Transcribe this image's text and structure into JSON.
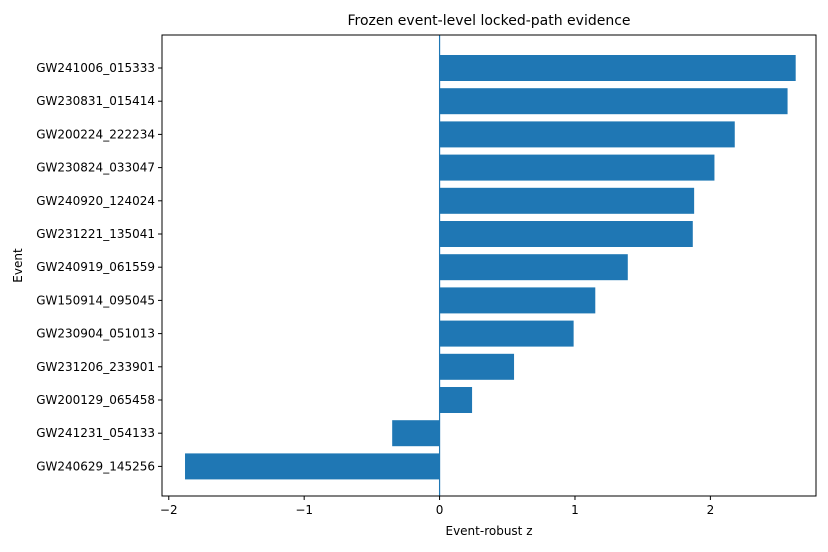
{
  "chart_data": {
    "type": "bar",
    "orientation": "horizontal",
    "title": "Frozen event-level locked-path evidence",
    "xlabel": "Event-robust z",
    "ylabel": "Event",
    "categories": [
      "GW241006_015333",
      "GW230831_015414",
      "GW200224_222234",
      "GW230824_033047",
      "GW240920_124024",
      "GW231221_135041",
      "GW240919_061559",
      "GW150914_095045",
      "GW230904_051013",
      "GW231206_233901",
      "GW200129_065458",
      "GW241231_054133",
      "GW240629_145256"
    ],
    "values": [
      2.63,
      2.57,
      2.18,
      2.03,
      1.88,
      1.87,
      1.39,
      1.15,
      0.99,
      0.55,
      0.24,
      -0.35,
      -1.88
    ],
    "xlim": [
      -2.05,
      2.78
    ],
    "xticks": [
      -2,
      -1,
      0,
      1,
      2
    ],
    "xtick_labels": [
      "−2",
      "−1",
      "0",
      "1",
      "2"
    ],
    "vline_x": 0,
    "bar_color": "#1f77b4",
    "line_color": "#1f77b4",
    "grid": false,
    "legend": "none"
  }
}
